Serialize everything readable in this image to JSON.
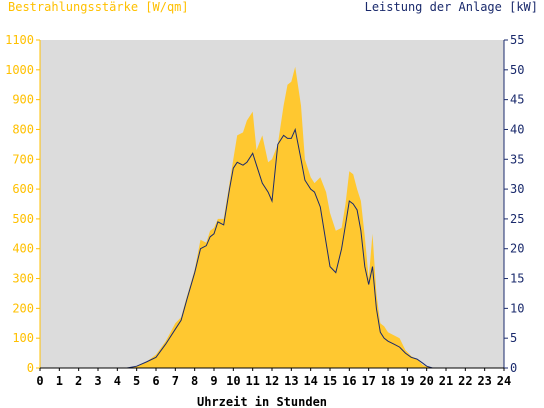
{
  "colors": {
    "plot_background": "#dcdcdc",
    "irradiance": "#ffc830",
    "power": "#1a2a6c",
    "left_axis": "#ffc000",
    "right_axis": "#1a2a6c"
  },
  "chart_data": {
    "type": "area",
    "ylabel": "Bestrahlungsstärke [W/qm]",
    "y2label": "Leistung der Anlage [kW]",
    "xlabel": "Uhrzeit in Stunden",
    "xlim": [
      0,
      24
    ],
    "ylim": [
      0,
      1100
    ],
    "y2lim": [
      0,
      55
    ],
    "x_ticks": [
      "0",
      "1",
      "2",
      "3",
      "4",
      "5",
      "6",
      "7",
      "8",
      "9",
      "10",
      "11",
      "12",
      "13",
      "14",
      "15",
      "16",
      "17",
      "18",
      "19",
      "20",
      "21",
      "22",
      "23",
      "24"
    ],
    "y_ticks": [
      0,
      100,
      200,
      300,
      400,
      500,
      600,
      700,
      800,
      900,
      1000,
      1100
    ],
    "y2_ticks": [
      0,
      5,
      10,
      15,
      20,
      25,
      30,
      35,
      40,
      45,
      50,
      55
    ],
    "grid": false,
    "series": [
      {
        "name": "Bestrahlungsstärke",
        "axis": "left",
        "type": "area",
        "x": [
          0,
          4.5,
          5.0,
          5.5,
          6.0,
          6.5,
          7.0,
          7.3,
          7.6,
          8.0,
          8.3,
          8.6,
          8.8,
          9.0,
          9.2,
          9.5,
          9.8,
          10.0,
          10.2,
          10.5,
          10.7,
          11.0,
          11.2,
          11.5,
          11.8,
          12.0,
          12.3,
          12.6,
          12.8,
          13.0,
          13.2,
          13.5,
          13.7,
          14.0,
          14.2,
          14.5,
          14.8,
          15.0,
          15.3,
          15.6,
          15.8,
          16.0,
          16.2,
          16.4,
          16.6,
          16.8,
          17.0,
          17.2,
          17.4,
          17.6,
          17.8,
          18.0,
          18.3,
          18.6,
          18.9,
          19.2,
          19.5,
          19.8,
          20.0,
          20.3,
          24
        ],
        "y": [
          0,
          0,
          5,
          20,
          45,
          90,
          150,
          170,
          240,
          330,
          430,
          420,
          460,
          470,
          500,
          500,
          620,
          700,
          780,
          790,
          830,
          860,
          730,
          780,
          690,
          700,
          750,
          880,
          950,
          960,
          1010,
          880,
          700,
          640,
          620,
          640,
          590,
          520,
          460,
          470,
          550,
          660,
          650,
          600,
          560,
          440,
          300,
          450,
          250,
          150,
          140,
          120,
          110,
          100,
          60,
          40,
          30,
          10,
          5,
          0,
          0
        ]
      },
      {
        "name": "Leistung der Anlage",
        "axis": "right",
        "type": "line",
        "x": [
          0,
          4.5,
          5.0,
          5.5,
          6.0,
          6.5,
          7.0,
          7.3,
          7.6,
          8.0,
          8.3,
          8.6,
          8.8,
          9.0,
          9.2,
          9.5,
          9.8,
          10.0,
          10.2,
          10.5,
          10.7,
          11.0,
          11.2,
          11.5,
          11.8,
          12.0,
          12.3,
          12.6,
          12.8,
          13.0,
          13.2,
          13.5,
          13.7,
          14.0,
          14.2,
          14.5,
          14.8,
          15.0,
          15.3,
          15.6,
          15.8,
          16.0,
          16.2,
          16.4,
          16.6,
          16.8,
          17.0,
          17.2,
          17.4,
          17.6,
          17.8,
          18.0,
          18.3,
          18.6,
          18.9,
          19.2,
          19.5,
          19.8,
          20.0,
          20.3,
          24
        ],
        "y": [
          0,
          0,
          0.3,
          1.0,
          1.8,
          4.0,
          6.5,
          8.0,
          11.5,
          16.0,
          20.0,
          20.5,
          22.0,
          22.5,
          24.5,
          24.0,
          30.0,
          33.5,
          34.5,
          34.0,
          34.5,
          36.0,
          34.0,
          31.0,
          29.5,
          28.0,
          37.5,
          39.0,
          38.5,
          38.5,
          40.0,
          35.0,
          31.5,
          30.0,
          29.5,
          27.0,
          21.0,
          17.0,
          16.0,
          20.0,
          24.0,
          28.0,
          27.5,
          26.5,
          23.0,
          17.0,
          14.0,
          17.0,
          10.0,
          6.0,
          5.0,
          4.5,
          4.0,
          3.5,
          2.5,
          1.8,
          1.5,
          0.8,
          0.3,
          0,
          0
        ]
      }
    ]
  }
}
